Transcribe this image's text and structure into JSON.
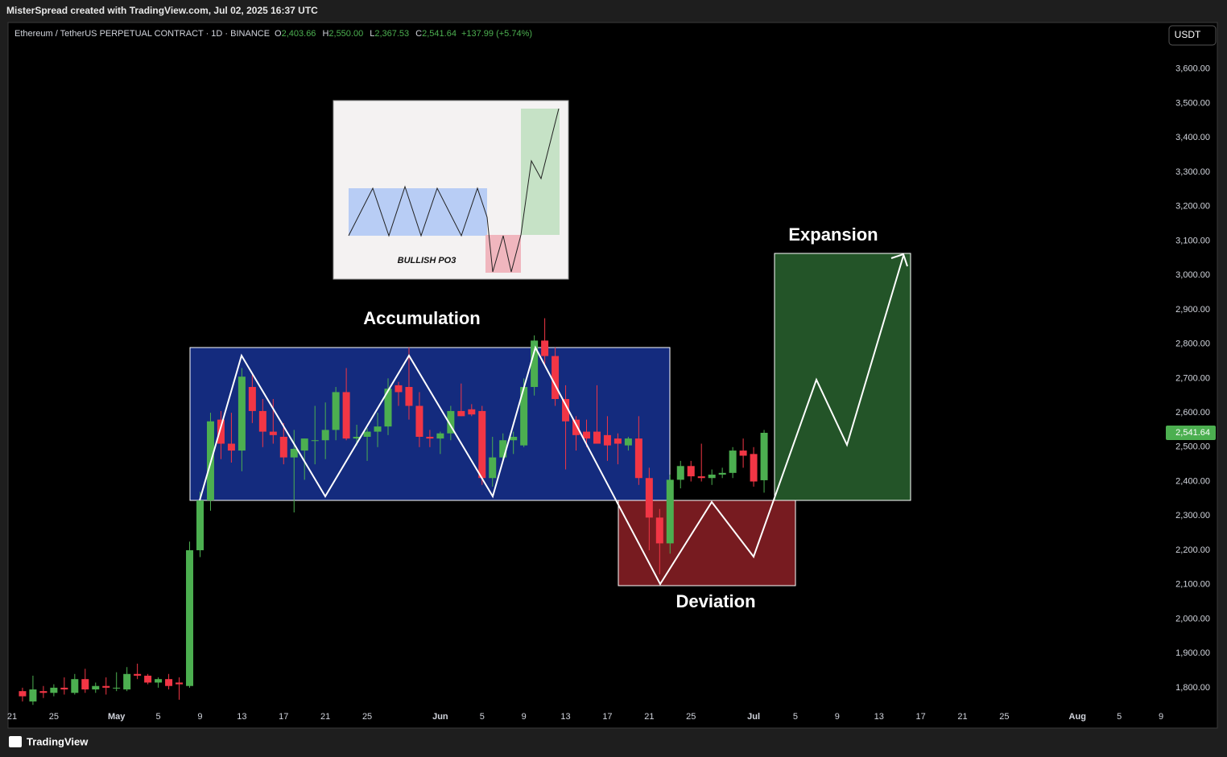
{
  "header": {
    "credit": "MisterSpread created with TradingView.com, Jul 02, 2025 16:37 UTC",
    "symbol": "Ethereum / TetherUS PERPETUAL CONTRACT · 1D · BINANCE",
    "ohlc": [
      {
        "label": "O",
        "value": "2,403.66"
      },
      {
        "label": "H",
        "value": "2,550.00"
      },
      {
        "label": "L",
        "value": "2,367.53"
      },
      {
        "label": "C",
        "value": "2,541.64"
      }
    ],
    "change": "+137.99 (+5.74%)",
    "currency": "USDT"
  },
  "footer": {
    "brand": "TradingView"
  },
  "annotations": {
    "accumulation": "Accumulation",
    "deviation": "Deviation",
    "expansion": "Expansion",
    "inset": "BULLISH PO3"
  },
  "chart_data": {
    "type": "candlestick",
    "up_color": "#4caf50",
    "down_color": "#f23645",
    "x": [
      "2025-04-22",
      "2025-04-23",
      "2025-04-24",
      "2025-04-25",
      "2025-04-26",
      "2025-04-27",
      "2025-04-28",
      "2025-04-29",
      "2025-04-30",
      "2025-05-01",
      "2025-05-02",
      "2025-05-03",
      "2025-05-04",
      "2025-05-05",
      "2025-05-06",
      "2025-05-07",
      "2025-05-08",
      "2025-05-09",
      "2025-05-10",
      "2025-05-11",
      "2025-05-12",
      "2025-05-13",
      "2025-05-14",
      "2025-05-15",
      "2025-05-16",
      "2025-05-17",
      "2025-05-18",
      "2025-05-19",
      "2025-05-20",
      "2025-05-21",
      "2025-05-22",
      "2025-05-23",
      "2025-05-24",
      "2025-05-25",
      "2025-05-26",
      "2025-05-27",
      "2025-05-28",
      "2025-05-29",
      "2025-05-30",
      "2025-05-31",
      "2025-06-01",
      "2025-06-02",
      "2025-06-03",
      "2025-06-04",
      "2025-06-05",
      "2025-06-06",
      "2025-06-07",
      "2025-06-08",
      "2025-06-09",
      "2025-06-10",
      "2025-06-11",
      "2025-06-12",
      "2025-06-13",
      "2025-06-14",
      "2025-06-15",
      "2025-06-16",
      "2025-06-17",
      "2025-06-18",
      "2025-06-19",
      "2025-06-20",
      "2025-06-21",
      "2025-06-22",
      "2025-06-23",
      "2025-06-24",
      "2025-06-25",
      "2025-06-26",
      "2025-06-27",
      "2025-06-28",
      "2025-06-29",
      "2025-06-30",
      "2025-07-01",
      "2025-07-02"
    ],
    "open": [
      1790,
      1760,
      1790,
      1785,
      1800,
      1785,
      1825,
      1795,
      1805,
      1800,
      1795,
      1840,
      1835,
      1815,
      1825,
      1815,
      1805,
      2200,
      2345,
      2580,
      2510,
      2490,
      2675,
      2605,
      2545,
      2530,
      2470,
      2490,
      2520,
      2520,
      2550,
      2660,
      2525,
      2530,
      2545,
      2560,
      2680,
      2675,
      2620,
      2530,
      2525,
      2540,
      2605,
      2610,
      2605,
      2410,
      2470,
      2520,
      2505,
      2675,
      2810,
      2765,
      2640,
      2580,
      2545,
      2545,
      2535,
      2525,
      2505,
      2525,
      2410,
      2295,
      2220,
      2405,
      2445,
      2415,
      2410,
      2420,
      2425,
      2490,
      2480,
      2403.66
    ],
    "high": [
      1800,
      1835,
      1805,
      1810,
      1830,
      1840,
      1855,
      1815,
      1830,
      1845,
      1860,
      1870,
      1840,
      1830,
      1840,
      1830,
      2225,
      2370,
      2600,
      2605,
      2600,
      2730,
      2710,
      2640,
      2640,
      2570,
      2550,
      2525,
      2620,
      2630,
      2675,
      2730,
      2565,
      2555,
      2600,
      2700,
      2690,
      2790,
      2660,
      2550,
      2545,
      2620,
      2685,
      2625,
      2620,
      2530,
      2540,
      2545,
      2700,
      2825,
      2875,
      2790,
      2680,
      2590,
      2580,
      2680,
      2590,
      2540,
      2530,
      2590,
      2440,
      2320,
      2420,
      2460,
      2460,
      2510,
      2435,
      2440,
      2500,
      2525,
      2500,
      2550
    ],
    "low": [
      1760,
      1750,
      1770,
      1775,
      1780,
      1780,
      1785,
      1785,
      1780,
      1790,
      1790,
      1825,
      1810,
      1800,
      1795,
      1765,
      1800,
      2180,
      2315,
      2465,
      2455,
      2430,
      2570,
      2500,
      2510,
      2450,
      2310,
      2405,
      2450,
      2465,
      2520,
      2520,
      2505,
      2460,
      2500,
      2535,
      2620,
      2580,
      2500,
      2500,
      2480,
      2520,
      2590,
      2590,
      2390,
      2385,
      2460,
      2480,
      2500,
      2650,
      2740,
      2620,
      2435,
      2490,
      2500,
      2520,
      2460,
      2450,
      2490,
      2390,
      2200,
      2130,
      2190,
      2380,
      2400,
      2400,
      2390,
      2410,
      2410,
      2440,
      2385,
      2367.53
    ],
    "close": [
      1775,
      1795,
      1785,
      1800,
      1795,
      1825,
      1795,
      1805,
      1800,
      1800,
      1840,
      1835,
      1815,
      1825,
      1805,
      1810,
      2200,
      2345,
      2575,
      2510,
      2490,
      2705,
      2605,
      2545,
      2535,
      2470,
      2495,
      2525,
      2520,
      2550,
      2660,
      2525,
      2530,
      2545,
      2560,
      2670,
      2660,
      2620,
      2530,
      2525,
      2540,
      2605,
      2590,
      2595,
      2410,
      2470,
      2520,
      2530,
      2675,
      2810,
      2765,
      2640,
      2575,
      2535,
      2525,
      2510,
      2505,
      2510,
      2525,
      2410,
      2295,
      2220,
      2405,
      2445,
      2415,
      2410,
      2420,
      2425,
      2490,
      2475,
      2400,
      2541.64
    ],
    "last_price_label": "2,541.64",
    "xlim": [
      "2025-04-20",
      "2025-08-10"
    ],
    "xticks": [
      {
        "value": "2025-04-21",
        "label": "21"
      },
      {
        "value": "2025-04-25",
        "label": "25"
      },
      {
        "value": "2025-05-01",
        "label": "May"
      },
      {
        "value": "2025-05-05",
        "label": "5"
      },
      {
        "value": "2025-05-09",
        "label": "9"
      },
      {
        "value": "2025-05-13",
        "label": "13"
      },
      {
        "value": "2025-05-17",
        "label": "17"
      },
      {
        "value": "2025-05-21",
        "label": "21"
      },
      {
        "value": "2025-05-25",
        "label": "25"
      },
      {
        "value": "2025-06-01",
        "label": "Jun"
      },
      {
        "value": "2025-06-05",
        "label": "5"
      },
      {
        "value": "2025-06-09",
        "label": "9"
      },
      {
        "value": "2025-06-13",
        "label": "13"
      },
      {
        "value": "2025-06-17",
        "label": "17"
      },
      {
        "value": "2025-06-21",
        "label": "21"
      },
      {
        "value": "2025-06-25",
        "label": "25"
      },
      {
        "value": "2025-07-01",
        "label": "Jul"
      },
      {
        "value": "2025-07-05",
        "label": "5"
      },
      {
        "value": "2025-07-09",
        "label": "9"
      },
      {
        "value": "2025-07-13",
        "label": "13"
      },
      {
        "value": "2025-07-17",
        "label": "17"
      },
      {
        "value": "2025-07-21",
        "label": "21"
      },
      {
        "value": "2025-07-25",
        "label": "25"
      },
      {
        "value": "2025-08-01",
        "label": "Aug"
      },
      {
        "value": "2025-08-05",
        "label": "5"
      },
      {
        "value": "2025-08-09",
        "label": "9"
      }
    ],
    "ylim": [
      1685,
      3733
    ],
    "yticks": [
      {
        "value": 1800,
        "label": "1,800.00"
      },
      {
        "value": 1900,
        "label": "1,900.00"
      },
      {
        "value": 2000,
        "label": "2,000.00"
      },
      {
        "value": 2100,
        "label": "2,100.00"
      },
      {
        "value": 2200,
        "label": "2,200.00"
      },
      {
        "value": 2300,
        "label": "2,300.00"
      },
      {
        "value": 2400,
        "label": "2,400.00"
      },
      {
        "value": 2500,
        "label": "2,500.00"
      },
      {
        "value": 2600,
        "label": "2,600.00"
      },
      {
        "value": 2700,
        "label": "2,700.00"
      },
      {
        "value": 2800,
        "label": "2,800.00"
      },
      {
        "value": 2900,
        "label": "2,900.00"
      },
      {
        "value": 3000,
        "label": "3,000.00"
      },
      {
        "value": 3100,
        "label": "3,100.00"
      },
      {
        "value": 3200,
        "label": "3,200.00"
      },
      {
        "value": 3300,
        "label": "3,300.00"
      },
      {
        "value": 3400,
        "label": "3,400.00"
      },
      {
        "value": 3500,
        "label": "3,500.00"
      },
      {
        "value": 3600,
        "label": "3,600.00"
      }
    ],
    "grid": false
  }
}
